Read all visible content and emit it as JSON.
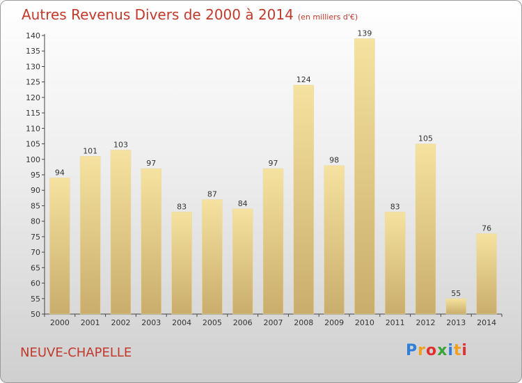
{
  "title": "Autres Revenus Divers de 2000 à 2014",
  "unit_note": "(en milliers d'€)",
  "place": "NEUVE-CHAPELLE",
  "logo": {
    "letters": [
      "P",
      "r",
      "o",
      "x",
      "i",
      "t",
      "i"
    ],
    "colors": [
      "#2f7fd8",
      "#f0a020",
      "#e03030",
      "#3aa33a",
      "#2f7fd8",
      "#f0a020",
      "#e03030"
    ]
  },
  "colors": {
    "title": "#c0392b",
    "bar_light": "#f6e2a0",
    "bar_dark": "#c9ad6c"
  },
  "chart_data": {
    "type": "bar",
    "categories": [
      "2000",
      "2001",
      "2002",
      "2003",
      "2004",
      "2005",
      "2006",
      "2007",
      "2008",
      "2009",
      "2010",
      "2011",
      "2012",
      "2013",
      "2014"
    ],
    "values": [
      94,
      101,
      103,
      97,
      83,
      87,
      84,
      97,
      124,
      98,
      139,
      83,
      105,
      55,
      76
    ],
    "ylim": [
      50,
      140
    ],
    "yticks": [
      50,
      55,
      60,
      65,
      70,
      75,
      80,
      85,
      90,
      95,
      100,
      105,
      110,
      115,
      120,
      125,
      130,
      135,
      140
    ],
    "grid": false
  }
}
